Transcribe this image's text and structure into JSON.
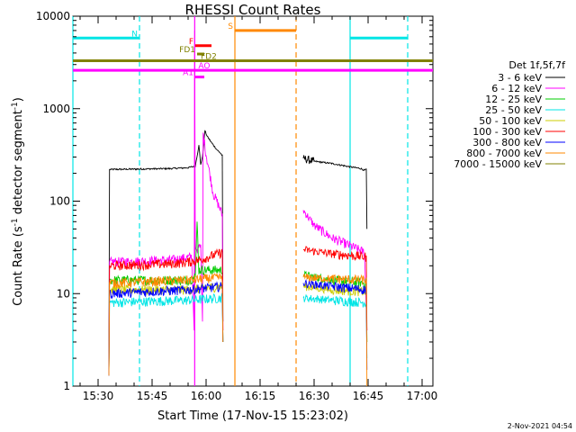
{
  "chart_data": {
    "type": "line",
    "title": "RHESSI Count Rates",
    "xlabel": "Start Time (17-Nov-15 15:23:02)",
    "ylabel_prefix": "Count Rate (s",
    "ylabel_sup1": "-1",
    "ylabel_mid": " detector segment",
    "ylabel_sup2": "-1",
    "ylabel_suffix": ")",
    "y_scale": "log",
    "xlim_minutes": [
      "15:23:00",
      "17:03:00"
    ],
    "ylim": [
      1,
      10000
    ],
    "x_ticks": [
      "15:30",
      "15:45",
      "16:00",
      "16:15",
      "16:30",
      "16:45",
      "17:00"
    ],
    "y_ticks": [
      "10000",
      "1000",
      "100",
      "10",
      "1"
    ],
    "legend": {
      "title": "Det 1f,5f,7f",
      "placement": "right",
      "entries": [
        {
          "label": "3 - 6 keV",
          "color": "#000000"
        },
        {
          "label": "6 - 12 keV",
          "color": "#ff00ff"
        },
        {
          "label": "12 - 25 keV",
          "color": "#00cc00"
        },
        {
          "label": "25 - 50 keV",
          "color": "#00e5e5"
        },
        {
          "label": "50 - 100 keV",
          "color": "#cccc00"
        },
        {
          "label": "100 - 300 keV",
          "color": "#ff0000"
        },
        {
          "label": "300 - 800 keV",
          "color": "#0000ff"
        },
        {
          "label": "800 - 7000 keV",
          "color": "#ff8800"
        },
        {
          "label": "7000 - 15000 keV",
          "color": "#808000"
        }
      ]
    },
    "series": [
      {
        "name": "3 - 6 keV",
        "color": "#000000",
        "segments": [
          {
            "start": "15:33:00",
            "points": [
              [
                "15:33:00",
                1.3
              ],
              [
                "15:33:10",
                220
              ],
              [
                "15:50:00",
                225
              ],
              [
                "15:55:00",
                230
              ],
              [
                "15:57:00",
                240
              ],
              [
                "15:58:00",
                400
              ],
              [
                "15:58:30",
                250
              ],
              [
                "15:59:00",
                300
              ],
              [
                "15:59:40",
                580
              ],
              [
                "16:00:20",
                500
              ],
              [
                "16:01:30",
                430
              ],
              [
                "16:03:00",
                360
              ],
              [
                "16:04:00",
                330
              ],
              [
                "16:04:30",
                310
              ],
              [
                "16:04:40",
                5
              ]
            ]
          },
          {
            "start": "16:27:00",
            "points": [
              [
                "16:27:00",
                290
              ],
              [
                "16:30:00",
                270
              ],
              [
                "16:35:00",
                255
              ],
              [
                "16:40:00",
                235
              ],
              [
                "16:43:00",
                225
              ],
              [
                "16:44:00",
                215
              ],
              [
                "16:44:30",
                220
              ],
              [
                "16:44:40",
                50
              ]
            ]
          }
        ]
      },
      {
        "name": "6 - 12 keV",
        "color": "#ff00ff",
        "segments": [
          {
            "start": "15:33:00",
            "points": [
              [
                "15:33:00",
                1.3
              ],
              [
                "15:33:10",
                22
              ],
              [
                "15:50:00",
                23
              ],
              [
                "15:56:00",
                25
              ],
              [
                "15:56:40",
                4
              ],
              [
                "15:56:50",
                7000
              ],
              [
                "15:57:00",
                30
              ],
              [
                "15:58:30",
                32
              ],
              [
                "15:59:00",
                5
              ],
              [
                "15:59:10",
                550
              ],
              [
                "16:00:00",
                320
              ],
              [
                "16:01:00",
                200
              ],
              [
                "16:02:00",
                120
              ],
              [
                "16:03:00",
                100
              ],
              [
                "16:04:00",
                80
              ],
              [
                "16:04:30",
                70
              ],
              [
                "16:04:40",
                4
              ]
            ]
          },
          {
            "start": "16:27:00",
            "points": [
              [
                "16:27:00",
                80
              ],
              [
                "16:30:00",
                55
              ],
              [
                "16:35:00",
                40
              ],
              [
                "16:40:00",
                33
              ],
              [
                "16:44:00",
                28
              ],
              [
                "16:44:40",
                4
              ]
            ]
          }
        ]
      },
      {
        "name": "12 - 25 keV",
        "color": "#00cc00",
        "segments": [
          {
            "start": "15:33:00",
            "points": [
              [
                "15:33:00",
                1.3
              ],
              [
                "15:33:10",
                14
              ],
              [
                "15:55:00",
                14
              ],
              [
                "15:57:00",
                15
              ],
              [
                "15:57:30",
                60
              ],
              [
                "15:58:00",
                18
              ],
              [
                "16:04:30",
                18
              ],
              [
                "16:04:40",
                3
              ]
            ]
          },
          {
            "start": "16:27:00",
            "points": [
              [
                "16:27:00",
                16
              ],
              [
                "16:35:00",
                14
              ],
              [
                "16:44:30",
                13
              ],
              [
                "16:44:40",
                3
              ]
            ]
          }
        ]
      },
      {
        "name": "25 - 50 keV",
        "color": "#00e5e5",
        "segments": [
          {
            "start": "15:33:00",
            "points": [
              [
                "15:33:00",
                1.3
              ],
              [
                "15:33:10",
                8
              ],
              [
                "15:55:00",
                8.5
              ],
              [
                "16:04:30",
                9
              ],
              [
                "16:04:40",
                3
              ]
            ]
          },
          {
            "start": "16:27:00",
            "points": [
              [
                "16:27:00",
                9
              ],
              [
                "16:35:00",
                8.5
              ],
              [
                "16:44:30",
                8
              ],
              [
                "16:44:40",
                2
              ]
            ]
          }
        ]
      },
      {
        "name": "50 - 100 keV",
        "color": "#cccc00",
        "segments": [
          {
            "start": "15:33:00",
            "points": [
              [
                "15:33:00",
                1.3
              ],
              [
                "15:33:10",
                11
              ],
              [
                "15:55:00",
                11
              ],
              [
                "16:04:30",
                12
              ],
              [
                "16:04:40",
                3
              ]
            ]
          },
          {
            "start": "16:27:00",
            "points": [
              [
                "16:27:00",
                12
              ],
              [
                "16:35:00",
                11
              ],
              [
                "16:44:30",
                10.5
              ],
              [
                "16:44:40",
                3
              ]
            ]
          }
        ]
      },
      {
        "name": "100 - 300 keV",
        "color": "#ff0000",
        "segments": [
          {
            "start": "15:33:00",
            "points": [
              [
                "15:33:00",
                1.3
              ],
              [
                "15:33:10",
                20
              ],
              [
                "15:50:00",
                21
              ],
              [
                "15:55:00",
                22
              ],
              [
                "15:58:00",
                23
              ],
              [
                "16:04:30",
                28
              ],
              [
                "16:04:40",
                4
              ]
            ]
          },
          {
            "start": "16:27:00",
            "points": [
              [
                "16:27:00",
                30
              ],
              [
                "16:35:00",
                27
              ],
              [
                "16:44:30",
                25
              ],
              [
                "16:44:40",
                4
              ]
            ]
          }
        ]
      },
      {
        "name": "300 - 800 keV",
        "color": "#0000ff",
        "segments": [
          {
            "start": "15:33:00",
            "points": [
              [
                "15:33:00",
                1.3
              ],
              [
                "15:33:10",
                10
              ],
              [
                "15:55:00",
                11
              ],
              [
                "16:04:30",
                12
              ],
              [
                "16:04:40",
                3
              ]
            ]
          },
          {
            "start": "16:27:00",
            "points": [
              [
                "16:27:00",
                13
              ],
              [
                "16:35:00",
                12
              ],
              [
                "16:44:30",
                11
              ],
              [
                "16:44:40",
                1.5
              ]
            ]
          }
        ]
      },
      {
        "name": "800 - 7000 keV",
        "color": "#ff8800",
        "segments": [
          {
            "start": "15:33:00",
            "points": [
              [
                "15:33:00",
                1.3
              ],
              [
                "15:33:10",
                13
              ],
              [
                "15:55:00",
                14
              ],
              [
                "16:04:30",
                15
              ],
              [
                "16:04:40",
                3
              ]
            ]
          },
          {
            "start": "16:27:00",
            "points": [
              [
                "16:27:00",
                15
              ],
              [
                "16:35:00",
                14.5
              ],
              [
                "16:44:30",
                14
              ],
              [
                "16:44:40",
                1
              ]
            ]
          }
        ]
      },
      {
        "name": "7000 - 15000 keV",
        "color": "#808000",
        "segments": []
      }
    ],
    "flags": [
      {
        "label": "N",
        "color": "#00e5e5",
        "y": 5800,
        "intervals": [
          [
            "15:23:00",
            "15:41:30"
          ],
          [
            "16:40:00",
            "16:56:00"
          ]
        ]
      },
      {
        "label": "S",
        "color": "#ff8800",
        "y": 7000,
        "intervals": [
          [
            "16:08:00",
            "16:25:00"
          ]
        ]
      },
      {
        "label": "F",
        "color": "#ff0000",
        "y": 4800,
        "intervals": [
          [
            "15:57:00",
            "16:01:30"
          ]
        ]
      },
      {
        "label": "FD1",
        "color": "#808000",
        "y": 3900,
        "intervals": [
          [
            "15:57:30",
            "15:59:30"
          ]
        ]
      },
      {
        "label": "FD2",
        "color": "#808000",
        "y": 3300,
        "intervals": [
          [
            "15:57:30",
            "15:59:30"
          ]
        ]
      },
      {
        "label": "AO",
        "color": "#ff00ff",
        "y": 2600,
        "intervals": [
          [
            "15:56:50",
            "15:57:00"
          ]
        ]
      },
      {
        "label": "A1",
        "color": "#ff00ff",
        "y": 2200,
        "intervals": [
          [
            "15:57:00",
            "15:59:30"
          ]
        ]
      }
    ],
    "wide_bands": [
      {
        "color": "#808000",
        "y": 3300,
        "intervals": [
          [
            "15:23:00",
            "17:03:00"
          ]
        ]
      },
      {
        "color": "#ff00ff",
        "y": 2600,
        "intervals": [
          [
            "15:23:00",
            "17:03:00"
          ]
        ]
      }
    ],
    "vertical_lines": [
      {
        "time": "15:23:00",
        "color": "#00e5e5",
        "style": "solid"
      },
      {
        "time": "15:41:30",
        "color": "#00e5e5",
        "style": "dashed"
      },
      {
        "time": "16:08:00",
        "color": "#ff8800",
        "style": "solid"
      },
      {
        "time": "16:25:00",
        "color": "#ff8800",
        "style": "dashed"
      },
      {
        "time": "16:40:00",
        "color": "#00e5e5",
        "style": "solid"
      },
      {
        "time": "16:56:00",
        "color": "#00e5e5",
        "style": "dashed"
      },
      {
        "time": "15:56:50",
        "color": "#ff00ff",
        "style": "solid"
      }
    ],
    "timestamp": "2-Nov-2021 04:54"
  }
}
